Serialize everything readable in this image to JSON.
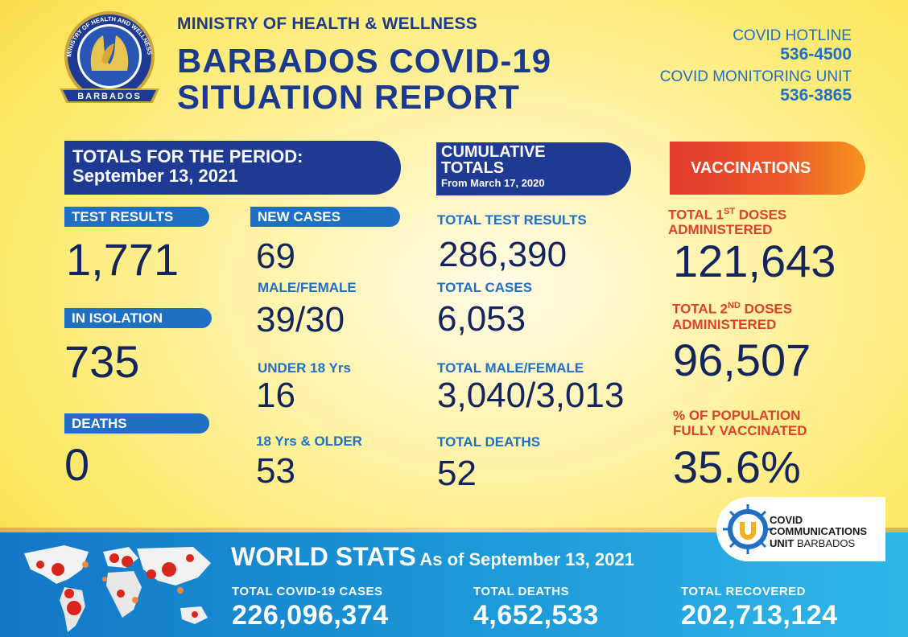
{
  "header": {
    "logo_text_top": "MINISTRY OF HEALTH AND WELLNESS",
    "logo_text_bottom": "BARBADOS",
    "ministry": "MINISTRY OF HEALTH & WELLNESS",
    "title_line1": "BARBADOS COVID-19",
    "title_line2": "SITUATION REPORT",
    "hotline_label": "COVID HOTLINE",
    "hotline_number": "536-4500",
    "monitoring_label": "COVID MONITORING UNIT",
    "monitoring_number": "536-3865"
  },
  "period": {
    "banner_line1": "TOTALS FOR THE PERIOD:",
    "banner_line2": "September 13, 2021",
    "test_results_label": "TEST RESULTS",
    "test_results_value": "1,771",
    "isolation_label": "IN ISOLATION",
    "isolation_value": "735",
    "deaths_label": "DEATHS",
    "deaths_value": "0",
    "new_cases_label": "NEW CASES",
    "new_cases_value": "69",
    "male_female_label": "MALE/FEMALE",
    "male_female_value": "39/30",
    "under18_label": "UNDER 18 Yrs",
    "under18_value": "16",
    "over18_label": "18 Yrs & OLDER",
    "over18_value": "53"
  },
  "cumulative": {
    "banner_line1": "CUMULATIVE",
    "banner_line2": "TOTALS",
    "banner_from": "From March 17, 2020",
    "tests_label": "TOTAL TEST RESULTS",
    "tests_value": "286,390",
    "cases_label": "TOTAL CASES",
    "cases_value": "6,053",
    "mf_label": "TOTAL MALE/FEMALE",
    "mf_value": "3,040/3,013",
    "deaths_label": "TOTAL DEATHS",
    "deaths_value": "52"
  },
  "vaccinations": {
    "banner": "VACCINATIONS",
    "first_label_a": "TOTAL 1",
    "first_label_sup": "ST",
    "first_label_b": " DOSES",
    "first_label_2": "ADMINISTERED",
    "first_value": "121,643",
    "second_label_a": "TOTAL 2",
    "second_label_sup": "ND",
    "second_label_b": " DOSES",
    "second_label_2": "ADMINISTERED",
    "second_value": "96,507",
    "pct_label_1": "% OF POPULATION",
    "pct_label_2": "FULLY VACCINATED",
    "pct_value": "35.6%"
  },
  "ccu": {
    "line1": "COVID",
    "line2": "COMMUNICATIONS",
    "line3a": "UNIT",
    "line3b": " BARBADOS"
  },
  "world": {
    "title": "WORLD STATS",
    "as_of": "As of September 13, 2021",
    "cases_label": "TOTAL  COVID-19  CASES",
    "cases_value": "226,096,374",
    "deaths_label": "TOTAL  DEATHS",
    "deaths_value": "4,652,533",
    "recovered_label": "TOTAL  RECOVERED",
    "recovered_value": "202,713,124"
  },
  "colors": {
    "navy": "#1e3a93",
    "blue": "#1f6fc4",
    "red": "#e0412c",
    "yellow_bg": "#fde96a"
  }
}
